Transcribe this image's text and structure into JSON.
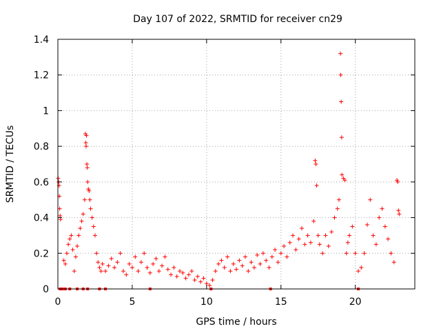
{
  "chart_data": {
    "type": "scatter",
    "title": "Day 107 of 2022, SRMTID for receiver cn29",
    "xlabel": "GPS time / hours",
    "ylabel": "SRMTID / TECUs",
    "xlim": [
      0,
      24
    ],
    "ylim": [
      0,
      1.4
    ],
    "grid": true,
    "marker": "plus",
    "series_color": "#ff0000",
    "x_ticks": [
      0,
      5,
      10,
      15,
      20
    ],
    "x_tick_labels": [
      "0",
      "5",
      "10",
      "15",
      "20"
    ],
    "y_ticks": [
      0,
      0.2,
      0.4,
      0.6,
      0.8,
      1.0,
      1.2,
      1.4
    ],
    "y_tick_labels": [
      "0",
      "0.2",
      "0.4",
      "0.6",
      "0.8",
      "1",
      "1.2",
      "1.4"
    ],
    "series": [
      {
        "name": "cn29",
        "points": [
          [
            0.02,
            0.62
          ],
          [
            0.05,
            0.6
          ],
          [
            0.08,
            0.58
          ],
          [
            0.1,
            0.52
          ],
          [
            0.12,
            0.45
          ],
          [
            0.15,
            0.41
          ],
          [
            0.18,
            0.39
          ],
          [
            0.4,
            0.16
          ],
          [
            0.5,
            0.14
          ],
          [
            0.6,
            0.2
          ],
          [
            0.7,
            0.25
          ],
          [
            0.8,
            0.28
          ],
          [
            0.9,
            0.3
          ],
          [
            1.0,
            0.22
          ],
          [
            1.1,
            0.1
          ],
          [
            1.2,
            0.18
          ],
          [
            1.3,
            0.24
          ],
          [
            1.4,
            0.3
          ],
          [
            1.5,
            0.34
          ],
          [
            1.6,
            0.38
          ],
          [
            1.7,
            0.42
          ],
          [
            1.8,
            0.5
          ],
          [
            1.85,
            0.87
          ],
          [
            1.88,
            0.82
          ],
          [
            1.9,
            0.8
          ],
          [
            1.92,
            0.86
          ],
          [
            1.95,
            0.7
          ],
          [
            1.98,
            0.68
          ],
          [
            2.0,
            0.6
          ],
          [
            2.05,
            0.56
          ],
          [
            2.1,
            0.55
          ],
          [
            2.15,
            0.5
          ],
          [
            2.2,
            0.45
          ],
          [
            2.3,
            0.4
          ],
          [
            2.4,
            0.35
          ],
          [
            2.5,
            0.3
          ],
          [
            2.6,
            0.2
          ],
          [
            2.7,
            0.15
          ],
          [
            2.8,
            0.12
          ],
          [
            2.9,
            0.1
          ],
          [
            3.0,
            0.14
          ],
          [
            3.2,
            0.1
          ],
          [
            3.4,
            0.13
          ],
          [
            3.6,
            0.17
          ],
          [
            3.8,
            0.12
          ],
          [
            4.0,
            0.15
          ],
          [
            4.2,
            0.2
          ],
          [
            4.4,
            0.1
          ],
          [
            4.6,
            0.08
          ],
          [
            4.8,
            0.14
          ],
          [
            5.0,
            0.12
          ],
          [
            5.2,
            0.18
          ],
          [
            5.4,
            0.1
          ],
          [
            5.6,
            0.15
          ],
          [
            5.8,
            0.2
          ],
          [
            6.0,
            0.12
          ],
          [
            6.2,
            0.09
          ],
          [
            6.4,
            0.14
          ],
          [
            6.6,
            0.17
          ],
          [
            6.8,
            0.1
          ],
          [
            7.0,
            0.13
          ],
          [
            7.2,
            0.18
          ],
          [
            7.4,
            0.11
          ],
          [
            7.6,
            0.08
          ],
          [
            7.8,
            0.12
          ],
          [
            8.0,
            0.07
          ],
          [
            8.2,
            0.1
          ],
          [
            8.4,
            0.09
          ],
          [
            8.6,
            0.06
          ],
          [
            8.8,
            0.08
          ],
          [
            9.0,
            0.1
          ],
          [
            9.2,
            0.05
          ],
          [
            9.4,
            0.07
          ],
          [
            9.6,
            0.04
          ],
          [
            9.8,
            0.06
          ],
          [
            10.0,
            0.03
          ],
          [
            10.2,
            0.02
          ],
          [
            10.4,
            0.05
          ],
          [
            10.6,
            0.1
          ],
          [
            10.8,
            0.14
          ],
          [
            11.0,
            0.16
          ],
          [
            11.2,
            0.12
          ],
          [
            11.4,
            0.18
          ],
          [
            11.6,
            0.1
          ],
          [
            11.8,
            0.14
          ],
          [
            12.0,
            0.11
          ],
          [
            12.2,
            0.16
          ],
          [
            12.4,
            0.13
          ],
          [
            12.6,
            0.18
          ],
          [
            12.8,
            0.1
          ],
          [
            13.0,
            0.15
          ],
          [
            13.2,
            0.12
          ],
          [
            13.4,
            0.19
          ],
          [
            13.6,
            0.14
          ],
          [
            13.8,
            0.2
          ],
          [
            14.0,
            0.16
          ],
          [
            14.2,
            0.12
          ],
          [
            14.4,
            0.18
          ],
          [
            14.6,
            0.22
          ],
          [
            14.8,
            0.15
          ],
          [
            15.0,
            0.2
          ],
          [
            15.2,
            0.24
          ],
          [
            15.4,
            0.18
          ],
          [
            15.6,
            0.26
          ],
          [
            15.8,
            0.3
          ],
          [
            16.0,
            0.22
          ],
          [
            16.2,
            0.28
          ],
          [
            16.4,
            0.34
          ],
          [
            16.6,
            0.25
          ],
          [
            16.8,
            0.3
          ],
          [
            17.0,
            0.26
          ],
          [
            17.2,
            0.38
          ],
          [
            17.3,
            0.72
          ],
          [
            17.35,
            0.7
          ],
          [
            17.4,
            0.58
          ],
          [
            17.5,
            0.3
          ],
          [
            17.6,
            0.25
          ],
          [
            17.8,
            0.2
          ],
          [
            18.0,
            0.3
          ],
          [
            18.2,
            0.24
          ],
          [
            18.4,
            0.32
          ],
          [
            18.6,
            0.4
          ],
          [
            18.8,
            0.45
          ],
          [
            18.9,
            0.5
          ],
          [
            19.0,
            1.32
          ],
          [
            19.02,
            1.2
          ],
          [
            19.05,
            1.05
          ],
          [
            19.08,
            0.85
          ],
          [
            19.1,
            0.64
          ],
          [
            19.2,
            0.62
          ],
          [
            19.3,
            0.61
          ],
          [
            19.4,
            0.2
          ],
          [
            19.5,
            0.26
          ],
          [
            19.6,
            0.3
          ],
          [
            19.8,
            0.35
          ],
          [
            20.0,
            0.2
          ],
          [
            20.2,
            0.1
          ],
          [
            20.4,
            0.12
          ],
          [
            20.6,
            0.2
          ],
          [
            20.8,
            0.36
          ],
          [
            21.0,
            0.5
          ],
          [
            21.2,
            0.3
          ],
          [
            21.4,
            0.25
          ],
          [
            21.6,
            0.4
          ],
          [
            21.8,
            0.45
          ],
          [
            22.0,
            0.35
          ],
          [
            22.2,
            0.28
          ],
          [
            22.4,
            0.2
          ],
          [
            22.6,
            0.15
          ],
          [
            22.8,
            0.61
          ],
          [
            22.85,
            0.6
          ],
          [
            22.9,
            0.44
          ],
          [
            22.95,
            0.42
          ]
        ],
        "zero_markers_x": [
          0.15,
          0.3,
          0.5,
          0.8,
          1.3,
          1.7,
          2.0,
          2.8,
          3.2,
          6.2,
          10.3,
          14.3,
          20.2
        ]
      }
    ]
  }
}
